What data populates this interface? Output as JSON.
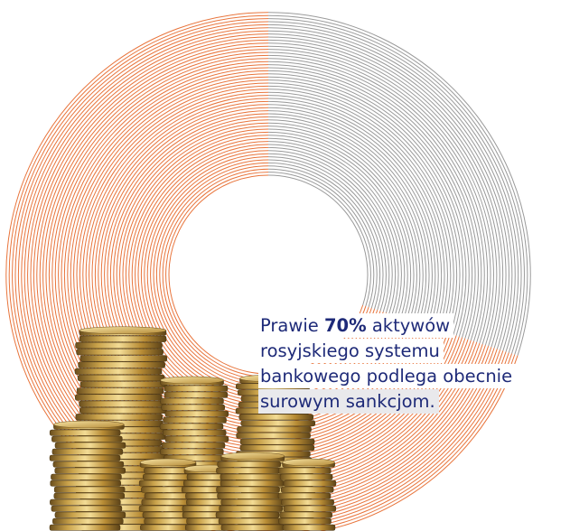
{
  "infographic": {
    "share_percent": 70,
    "accent_color": "#e8743b",
    "ring_color": "#9a9a9a",
    "text_color": "#1e2a78",
    "caption": {
      "line1_prefix": "Prawie ",
      "line1_bold": "70%",
      "line1_suffix": " aktywów",
      "line2": "rosyjskiego systemu",
      "line3": "bankowego podlega obecnie",
      "line4": "surowym sankcjom."
    },
    "illustration": "stacked-gold-coins"
  }
}
